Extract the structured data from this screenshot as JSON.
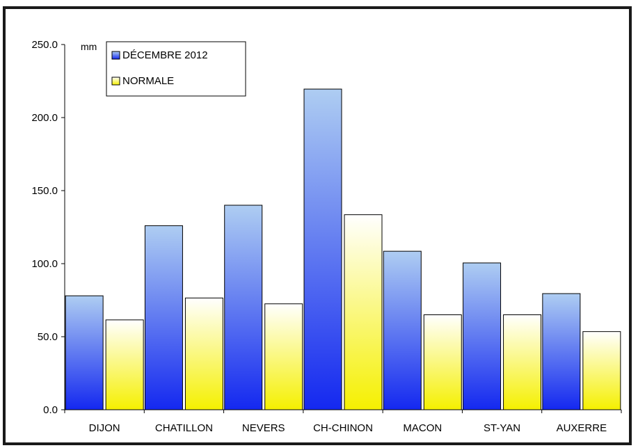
{
  "chart_data": {
    "type": "bar",
    "unit_label": "mm",
    "categories": [
      "DIJON",
      "CHATILLON",
      "NEVERS",
      "CH-CHINON",
      "MACON",
      "ST-YAN",
      "AUXERRE"
    ],
    "series": [
      {
        "name": "DÉCEMBRE 2012",
        "values": [
          78.0,
          126.0,
          140.0,
          219.5,
          108.5,
          100.5,
          79.5
        ]
      },
      {
        "name": "NORMALE",
        "values": [
          61.5,
          76.5,
          72.5,
          133.5,
          65.0,
          65.0,
          53.5
        ]
      }
    ],
    "ylim": [
      0,
      250
    ],
    "yticks": [
      "0.0",
      "50.0",
      "100.0",
      "150.0",
      "200.0",
      "250.0"
    ],
    "grid": false,
    "legend_position": "top-left",
    "colors": {
      "series1_top": "#aecdf2",
      "series1_bottom": "#1428f0",
      "series2_top": "#ffffff",
      "series2_bottom": "#f5f000",
      "outline": "#000000"
    }
  }
}
